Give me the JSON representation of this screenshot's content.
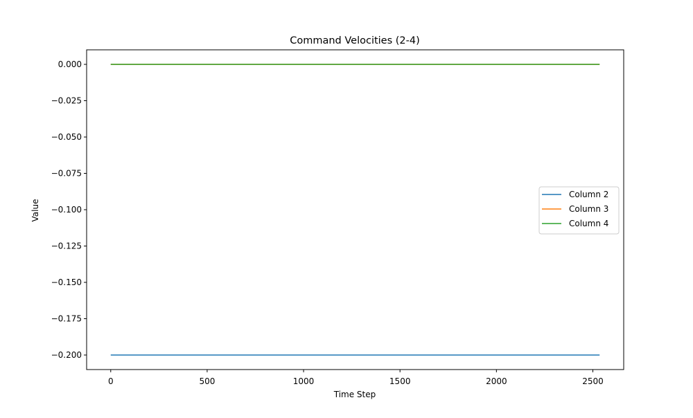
{
  "chart_data": {
    "type": "line",
    "title": "Command Velocities (2-4)",
    "xlabel": "Time Step",
    "ylabel": "Value",
    "xlim": [
      -125,
      2660
    ],
    "ylim": [
      -0.21,
      0.01
    ],
    "xticks": [
      0,
      500,
      1000,
      1500,
      2000,
      2500
    ],
    "xtick_labels": [
      "0",
      "500",
      "1000",
      "1500",
      "2000",
      "2500"
    ],
    "yticks": [
      0.0,
      -0.025,
      -0.05,
      -0.075,
      -0.1,
      -0.125,
      -0.15,
      -0.175,
      -0.2
    ],
    "ytick_labels": [
      "0.000",
      "−0.025",
      "−0.050",
      "−0.075",
      "−0.100",
      "−0.125",
      "−0.150",
      "−0.175",
      "−0.200"
    ],
    "grid": false,
    "legend_position": "center-right",
    "series": [
      {
        "name": "Column 2",
        "color": "#1f77b4",
        "x": [
          0,
          2535
        ],
        "y": [
          -0.2,
          -0.2
        ]
      },
      {
        "name": "Column 3",
        "color": "#ff7f0e",
        "x": [
          0,
          2535
        ],
        "y": [
          0.0,
          0.0
        ]
      },
      {
        "name": "Column 4",
        "color": "#2ca02c",
        "x": [
          0,
          2535
        ],
        "y": [
          0.0,
          0.0
        ]
      }
    ]
  }
}
